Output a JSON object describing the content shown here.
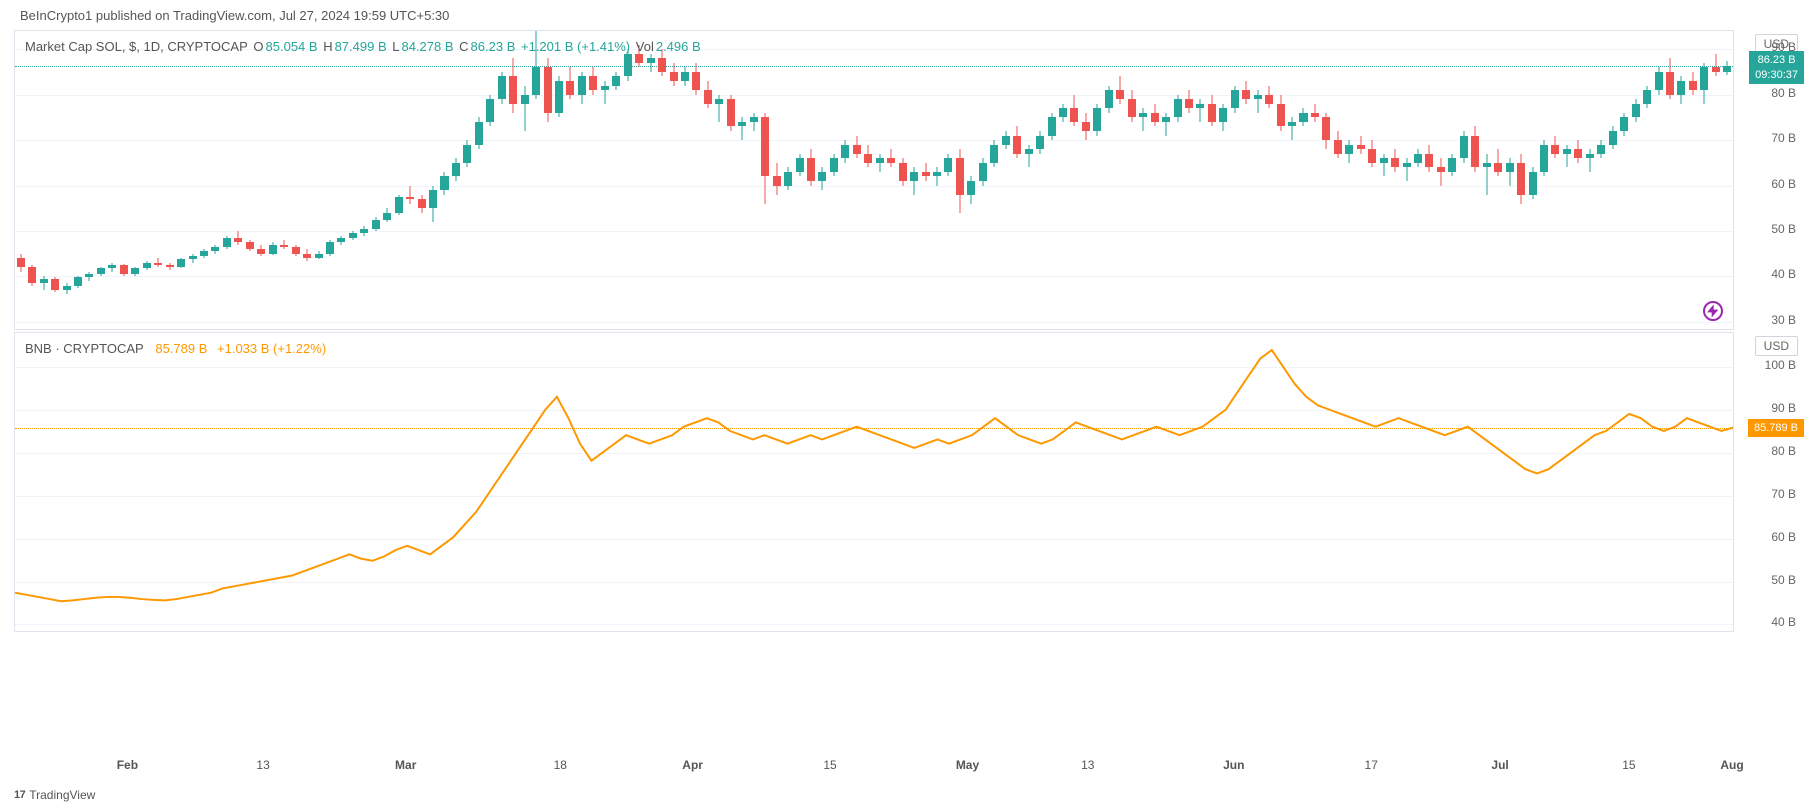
{
  "header": {
    "text": "BeInCrypto1 published on TradingView.com, Jul 27, 2024 19:59 UTC+5:30"
  },
  "footer": {
    "logo_prefix": "17",
    "brand": "TradingView"
  },
  "top_chart": {
    "type": "candlestick",
    "legend_parts": {
      "symbol": "Market Cap SOL, $, 1D, CRYPTOCAP",
      "o_label": "O",
      "o_val": "85.054 B",
      "h_label": "H",
      "h_val": "87.499 B",
      "l_label": "L",
      "l_val": "84.278 B",
      "c_label": "C",
      "c_val": "86.23 B",
      "chg": "+1.201 B (+1.41%)",
      "vol_label": "Vol",
      "vol_val": "2.496 B"
    },
    "colors": {
      "up": "#26a69a",
      "down": "#ef5350",
      "text_neutral": "#555",
      "text_teal": "#26a69a"
    },
    "currency_label": "USD",
    "ylim": [
      28,
      94
    ],
    "yticks": [
      30,
      40,
      50,
      60,
      70,
      80,
      90
    ],
    "ytick_labels": [
      "30 B",
      "40 B",
      "50 B",
      "60 B",
      "70 B",
      "80 B",
      "90 B"
    ],
    "price_tag": {
      "value": "86.23 B",
      "countdown": "09:30:37",
      "y": 86.23
    },
    "dash_line_y": 86.23,
    "dash_color": "#26a69a",
    "candles": [
      {
        "o": 44,
        "h": 45,
        "l": 41,
        "c": 42
      },
      {
        "o": 42,
        "h": 42.5,
        "l": 38,
        "c": 38.5
      },
      {
        "o": 38.5,
        "h": 40,
        "l": 37,
        "c": 39.5
      },
      {
        "o": 39.5,
        "h": 39.8,
        "l": 36.5,
        "c": 37
      },
      {
        "o": 37,
        "h": 38.5,
        "l": 36.2,
        "c": 38
      },
      {
        "o": 38,
        "h": 40,
        "l": 37.5,
        "c": 39.8
      },
      {
        "o": 39.8,
        "h": 41,
        "l": 39,
        "c": 40.5
      },
      {
        "o": 40.5,
        "h": 42,
        "l": 40,
        "c": 41.8
      },
      {
        "o": 41.8,
        "h": 43,
        "l": 41,
        "c": 42.5
      },
      {
        "o": 42.5,
        "h": 42.8,
        "l": 40,
        "c": 40.5
      },
      {
        "o": 40.5,
        "h": 42,
        "l": 40,
        "c": 41.8
      },
      {
        "o": 41.8,
        "h": 43.5,
        "l": 41.5,
        "c": 43
      },
      {
        "o": 43,
        "h": 44,
        "l": 42,
        "c": 42.5
      },
      {
        "o": 42.5,
        "h": 43,
        "l": 41.5,
        "c": 42
      },
      {
        "o": 42,
        "h": 44,
        "l": 41.8,
        "c": 43.8
      },
      {
        "o": 43.8,
        "h": 45,
        "l": 43,
        "c": 44.5
      },
      {
        "o": 44.5,
        "h": 46,
        "l": 44,
        "c": 45.5
      },
      {
        "o": 45.5,
        "h": 47,
        "l": 45,
        "c": 46.5
      },
      {
        "o": 46.5,
        "h": 49,
        "l": 46,
        "c": 48.5
      },
      {
        "o": 48.5,
        "h": 50,
        "l": 47,
        "c": 47.5
      },
      {
        "o": 47.5,
        "h": 48,
        "l": 45.5,
        "c": 46
      },
      {
        "o": 46,
        "h": 47,
        "l": 44.5,
        "c": 45
      },
      {
        "o": 45,
        "h": 47.5,
        "l": 44.8,
        "c": 47
      },
      {
        "o": 47,
        "h": 48,
        "l": 46,
        "c": 46.5
      },
      {
        "o": 46.5,
        "h": 47,
        "l": 44.5,
        "c": 45
      },
      {
        "o": 45,
        "h": 46,
        "l": 43.5,
        "c": 44
      },
      {
        "o": 44,
        "h": 45.5,
        "l": 43.8,
        "c": 45
      },
      {
        "o": 45,
        "h": 48,
        "l": 44.5,
        "c": 47.5
      },
      {
        "o": 47.5,
        "h": 49,
        "l": 47,
        "c": 48.5
      },
      {
        "o": 48.5,
        "h": 50,
        "l": 48,
        "c": 49.5
      },
      {
        "o": 49.5,
        "h": 51,
        "l": 49,
        "c": 50.5
      },
      {
        "o": 50.5,
        "h": 53,
        "l": 50,
        "c": 52.5
      },
      {
        "o": 52.5,
        "h": 55,
        "l": 52,
        "c": 54
      },
      {
        "o": 54,
        "h": 58,
        "l": 53.5,
        "c": 57.5
      },
      {
        "o": 57.5,
        "h": 60,
        "l": 56,
        "c": 57
      },
      {
        "o": 57,
        "h": 58,
        "l": 54,
        "c": 55
      },
      {
        "o": 55,
        "h": 60,
        "l": 52,
        "c": 59
      },
      {
        "o": 59,
        "h": 63,
        "l": 58,
        "c": 62
      },
      {
        "o": 62,
        "h": 66,
        "l": 61,
        "c": 65
      },
      {
        "o": 65,
        "h": 70,
        "l": 64,
        "c": 69
      },
      {
        "o": 69,
        "h": 75,
        "l": 68,
        "c": 74
      },
      {
        "o": 74,
        "h": 80,
        "l": 73,
        "c": 79
      },
      {
        "o": 79,
        "h": 85,
        "l": 78,
        "c": 84
      },
      {
        "o": 84,
        "h": 88,
        "l": 76,
        "c": 78
      },
      {
        "o": 78,
        "h": 82,
        "l": 72,
        "c": 80
      },
      {
        "o": 80,
        "h": 94,
        "l": 79,
        "c": 86
      },
      {
        "o": 86,
        "h": 88,
        "l": 74,
        "c": 76
      },
      {
        "o": 76,
        "h": 84,
        "l": 75,
        "c": 83
      },
      {
        "o": 83,
        "h": 86,
        "l": 79,
        "c": 80
      },
      {
        "o": 80,
        "h": 85,
        "l": 78,
        "c": 84
      },
      {
        "o": 84,
        "h": 86,
        "l": 80,
        "c": 81
      },
      {
        "o": 81,
        "h": 83,
        "l": 78,
        "c": 82
      },
      {
        "o": 82,
        "h": 85,
        "l": 81,
        "c": 84
      },
      {
        "o": 84,
        "h": 90,
        "l": 83,
        "c": 89
      },
      {
        "o": 89,
        "h": 91,
        "l": 86,
        "c": 87
      },
      {
        "o": 87,
        "h": 89,
        "l": 85,
        "c": 88
      },
      {
        "o": 88,
        "h": 90,
        "l": 84,
        "c": 85
      },
      {
        "o": 85,
        "h": 87,
        "l": 82,
        "c": 83
      },
      {
        "o": 83,
        "h": 86,
        "l": 82,
        "c": 85
      },
      {
        "o": 85,
        "h": 87,
        "l": 80,
        "c": 81
      },
      {
        "o": 81,
        "h": 83,
        "l": 77,
        "c": 78
      },
      {
        "o": 78,
        "h": 80,
        "l": 74,
        "c": 79
      },
      {
        "o": 79,
        "h": 80,
        "l": 72,
        "c": 73
      },
      {
        "o": 73,
        "h": 75,
        "l": 70,
        "c": 74
      },
      {
        "o": 74,
        "h": 76,
        "l": 72,
        "c": 75
      },
      {
        "o": 75,
        "h": 76,
        "l": 56,
        "c": 62
      },
      {
        "o": 62,
        "h": 65,
        "l": 58,
        "c": 60
      },
      {
        "o": 60,
        "h": 64,
        "l": 59,
        "c": 63
      },
      {
        "o": 63,
        "h": 67,
        "l": 62,
        "c": 66
      },
      {
        "o": 66,
        "h": 68,
        "l": 60,
        "c": 61
      },
      {
        "o": 61,
        "h": 64,
        "l": 59,
        "c": 63
      },
      {
        "o": 63,
        "h": 67,
        "l": 62,
        "c": 66
      },
      {
        "o": 66,
        "h": 70,
        "l": 65,
        "c": 69
      },
      {
        "o": 69,
        "h": 71,
        "l": 66,
        "c": 67
      },
      {
        "o": 67,
        "h": 69,
        "l": 64,
        "c": 65
      },
      {
        "o": 65,
        "h": 67,
        "l": 63,
        "c": 66
      },
      {
        "o": 66,
        "h": 68,
        "l": 64,
        "c": 65
      },
      {
        "o": 65,
        "h": 66,
        "l": 60,
        "c": 61
      },
      {
        "o": 61,
        "h": 64,
        "l": 58,
        "c": 63
      },
      {
        "o": 63,
        "h": 65,
        "l": 61,
        "c": 62
      },
      {
        "o": 62,
        "h": 64,
        "l": 60,
        "c": 63
      },
      {
        "o": 63,
        "h": 67,
        "l": 62,
        "c": 66
      },
      {
        "o": 66,
        "h": 68,
        "l": 54,
        "c": 58
      },
      {
        "o": 58,
        "h": 62,
        "l": 56,
        "c": 61
      },
      {
        "o": 61,
        "h": 66,
        "l": 60,
        "c": 65
      },
      {
        "o": 65,
        "h": 70,
        "l": 64,
        "c": 69
      },
      {
        "o": 69,
        "h": 72,
        "l": 68,
        "c": 71
      },
      {
        "o": 71,
        "h": 73,
        "l": 66,
        "c": 67
      },
      {
        "o": 67,
        "h": 69,
        "l": 64,
        "c": 68
      },
      {
        "o": 68,
        "h": 72,
        "l": 67,
        "c": 71
      },
      {
        "o": 71,
        "h": 76,
        "l": 70,
        "c": 75
      },
      {
        "o": 75,
        "h": 78,
        "l": 74,
        "c": 77
      },
      {
        "o": 77,
        "h": 80,
        "l": 73,
        "c": 74
      },
      {
        "o": 74,
        "h": 76,
        "l": 70,
        "c": 72
      },
      {
        "o": 72,
        "h": 78,
        "l": 71,
        "c": 77
      },
      {
        "o": 77,
        "h": 82,
        "l": 76,
        "c": 81
      },
      {
        "o": 81,
        "h": 84,
        "l": 78,
        "c": 79
      },
      {
        "o": 79,
        "h": 81,
        "l": 74,
        "c": 75
      },
      {
        "o": 75,
        "h": 77,
        "l": 72,
        "c": 76
      },
      {
        "o": 76,
        "h": 78,
        "l": 73,
        "c": 74
      },
      {
        "o": 74,
        "h": 76,
        "l": 71,
        "c": 75
      },
      {
        "o": 75,
        "h": 80,
        "l": 74,
        "c": 79
      },
      {
        "o": 79,
        "h": 81,
        "l": 76,
        "c": 77
      },
      {
        "o": 77,
        "h": 79,
        "l": 74,
        "c": 78
      },
      {
        "o": 78,
        "h": 80,
        "l": 73,
        "c": 74
      },
      {
        "o": 74,
        "h": 78,
        "l": 72,
        "c": 77
      },
      {
        "o": 77,
        "h": 82,
        "l": 76,
        "c": 81
      },
      {
        "o": 81,
        "h": 83,
        "l": 78,
        "c": 79
      },
      {
        "o": 79,
        "h": 81,
        "l": 76,
        "c": 80
      },
      {
        "o": 80,
        "h": 82,
        "l": 77,
        "c": 78
      },
      {
        "o": 78,
        "h": 80,
        "l": 72,
        "c": 73
      },
      {
        "o": 73,
        "h": 75,
        "l": 70,
        "c": 74
      },
      {
        "o": 74,
        "h": 77,
        "l": 73,
        "c": 76
      },
      {
        "o": 76,
        "h": 78,
        "l": 74,
        "c": 75
      },
      {
        "o": 75,
        "h": 76,
        "l": 68,
        "c": 70
      },
      {
        "o": 70,
        "h": 72,
        "l": 66,
        "c": 67
      },
      {
        "o": 67,
        "h": 70,
        "l": 65,
        "c": 69
      },
      {
        "o": 69,
        "h": 71,
        "l": 67,
        "c": 68
      },
      {
        "o": 68,
        "h": 70,
        "l": 64,
        "c": 65
      },
      {
        "o": 65,
        "h": 67,
        "l": 62,
        "c": 66
      },
      {
        "o": 66,
        "h": 68,
        "l": 63,
        "c": 64
      },
      {
        "o": 64,
        "h": 66,
        "l": 61,
        "c": 65
      },
      {
        "o": 65,
        "h": 68,
        "l": 64,
        "c": 67
      },
      {
        "o": 67,
        "h": 69,
        "l": 63,
        "c": 64
      },
      {
        "o": 64,
        "h": 66,
        "l": 60,
        "c": 63
      },
      {
        "o": 63,
        "h": 67,
        "l": 62,
        "c": 66
      },
      {
        "o": 66,
        "h": 72,
        "l": 65,
        "c": 71
      },
      {
        "o": 71,
        "h": 73,
        "l": 63,
        "c": 64
      },
      {
        "o": 64,
        "h": 67,
        "l": 58,
        "c": 65
      },
      {
        "o": 65,
        "h": 68,
        "l": 62,
        "c": 63
      },
      {
        "o": 63,
        "h": 66,
        "l": 60,
        "c": 65
      },
      {
        "o": 65,
        "h": 67,
        "l": 56,
        "c": 58
      },
      {
        "o": 58,
        "h": 64,
        "l": 57,
        "c": 63
      },
      {
        "o": 63,
        "h": 70,
        "l": 62,
        "c": 69
      },
      {
        "o": 69,
        "h": 71,
        "l": 66,
        "c": 67
      },
      {
        "o": 67,
        "h": 69,
        "l": 64,
        "c": 68
      },
      {
        "o": 68,
        "h": 70,
        "l": 65,
        "c": 66
      },
      {
        "o": 66,
        "h": 68,
        "l": 63,
        "c": 67
      },
      {
        "o": 67,
        "h": 70,
        "l": 66,
        "c": 69
      },
      {
        "o": 69,
        "h": 73,
        "l": 68,
        "c": 72
      },
      {
        "o": 72,
        "h": 76,
        "l": 71,
        "c": 75
      },
      {
        "o": 75,
        "h": 79,
        "l": 74,
        "c": 78
      },
      {
        "o": 78,
        "h": 82,
        "l": 77,
        "c": 81
      },
      {
        "o": 81,
        "h": 86,
        "l": 80,
        "c": 85
      },
      {
        "o": 85,
        "h": 88,
        "l": 79,
        "c": 80
      },
      {
        "o": 80,
        "h": 84,
        "l": 78,
        "c": 83
      },
      {
        "o": 83,
        "h": 85,
        "l": 80,
        "c": 81
      },
      {
        "o": 81,
        "h": 87,
        "l": 78,
        "c": 86
      },
      {
        "o": 86,
        "h": 89,
        "l": 84,
        "c": 85
      },
      {
        "o": 85,
        "h": 87.5,
        "l": 84.3,
        "c": 86.23
      }
    ]
  },
  "bottom_chart": {
    "type": "line",
    "legend_parts": {
      "symbol": "BNB · CRYPTOCAP",
      "val": "85.789 B",
      "chg": "+1.033 B (+1.22%)"
    },
    "color": "#ff9800",
    "currency_label": "USD",
    "ylim": [
      38,
      108
    ],
    "yticks": [
      40,
      50,
      60,
      70,
      80,
      90,
      100
    ],
    "ytick_labels": [
      "40 B",
      "50 B",
      "60 B",
      "70 B",
      "80 B",
      "90 B",
      "100 B"
    ],
    "price_tag": {
      "value": "85.789 B",
      "y": 85.789
    },
    "dash_line_y": 85.789,
    "dash_color": "#ff9800",
    "values": [
      47,
      46.5,
      46,
      45.5,
      45,
      45.2,
      45.5,
      45.8,
      46,
      46,
      45.8,
      45.5,
      45.3,
      45.2,
      45.5,
      46,
      46.5,
      47,
      48,
      48.5,
      49,
      49.5,
      50,
      50.5,
      51,
      52,
      53,
      54,
      55,
      56,
      55,
      54.5,
      55.5,
      57,
      58,
      57,
      56,
      58,
      60,
      63,
      66,
      70,
      74,
      78,
      82,
      86,
      90,
      93,
      88,
      82,
      78,
      80,
      82,
      84,
      83,
      82,
      83,
      84,
      86,
      87,
      88,
      87,
      85,
      84,
      83,
      84,
      83,
      82,
      83,
      84,
      83,
      84,
      85,
      86,
      85,
      84,
      83,
      82,
      81,
      82,
      83,
      82,
      83,
      84,
      86,
      88,
      86,
      84,
      83,
      82,
      83,
      85,
      87,
      86,
      85,
      84,
      83,
      84,
      85,
      86,
      85,
      84,
      85,
      86,
      88,
      90,
      94,
      98,
      102,
      104,
      100,
      96,
      93,
      91,
      90,
      89,
      88,
      87,
      86,
      87,
      88,
      87,
      86,
      85,
      84,
      85,
      86,
      84,
      82,
      80,
      78,
      76,
      75,
      76,
      78,
      80,
      82,
      84,
      85,
      87,
      89,
      88,
      86,
      85,
      86,
      88,
      87,
      86,
      85,
      85.789
    ]
  },
  "x_axis": {
    "ticks": [
      {
        "pos": 0.066,
        "label": "Feb",
        "bold": true
      },
      {
        "pos": 0.145,
        "label": "13",
        "bold": false
      },
      {
        "pos": 0.228,
        "label": "Mar",
        "bold": true
      },
      {
        "pos": 0.318,
        "label": "18",
        "bold": false
      },
      {
        "pos": 0.395,
        "label": "Apr",
        "bold": true
      },
      {
        "pos": 0.475,
        "label": "15",
        "bold": false
      },
      {
        "pos": 0.555,
        "label": "May",
        "bold": true
      },
      {
        "pos": 0.625,
        "label": "13",
        "bold": false
      },
      {
        "pos": 0.71,
        "label": "Jun",
        "bold": true
      },
      {
        "pos": 0.79,
        "label": "17",
        "bold": false
      },
      {
        "pos": 0.865,
        "label": "Jul",
        "bold": true
      },
      {
        "pos": 0.94,
        "label": "15",
        "bold": false
      },
      {
        "pos": 1.0,
        "label": "Aug",
        "bold": true
      }
    ]
  }
}
